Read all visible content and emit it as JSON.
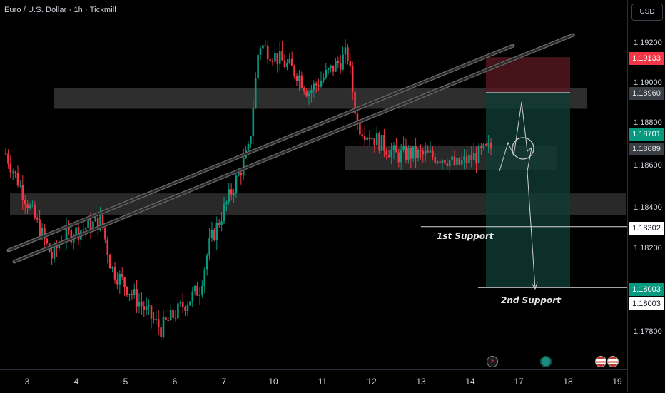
{
  "symbol": {
    "title": "Euro / U.S. Dollar · 1h · Tickmill"
  },
  "price_axis": {
    "currency": "USD",
    "ticks": [
      "1.19200",
      "1.19000",
      "1.18800",
      "1.18600",
      "1.18400",
      "1.18200",
      "1.17800"
    ],
    "tags": {
      "stop_price": "1.19133",
      "upper_zone": "1.18960",
      "last_price": "1.18701",
      "current": "1.18689",
      "first_support": "1.18302",
      "target": "1.18003",
      "target_secondary": "1.18003"
    }
  },
  "time_axis": {
    "labels": [
      "3",
      "4",
      "5",
      "6",
      "7",
      "10",
      "11",
      "12",
      "13",
      "14",
      "17",
      "18",
      "19"
    ]
  },
  "annotations": {
    "first_support": "1st Support",
    "second_support": "2nd Support"
  },
  "colors": {
    "bull": "#089981",
    "bear": "#f23645",
    "stop_zone": "#5c1a22",
    "target_zone": "#0f3b34",
    "zone": "#3a3a3a",
    "channel": "#6a6a6a",
    "tag_red": "#f23645",
    "tag_green": "#089981"
  },
  "chart_data": {
    "type": "candlestick",
    "symbol": "EURUSD",
    "interval": "1h",
    "y_range": [
      1.1767,
      1.1931
    ],
    "close_path": [
      {
        "x": "3",
        "y": 1.1866
      },
      {
        "x": "3",
        "y": 1.1815
      },
      {
        "x": "4",
        "y": 1.1825
      },
      {
        "x": "4",
        "y": 1.1833
      },
      {
        "x": "5",
        "y": 1.181
      },
      {
        "x": "6",
        "y": 1.178
      },
      {
        "x": "6",
        "y": 1.18
      },
      {
        "x": "7",
        "y": 1.1822
      },
      {
        "x": "7",
        "y": 1.1868
      },
      {
        "x": "10",
        "y": 1.192
      },
      {
        "x": "10",
        "y": 1.1905
      },
      {
        "x": "11",
        "y": 1.1896
      },
      {
        "x": "11",
        "y": 1.1915
      },
      {
        "x": "12",
        "y": 1.188
      },
      {
        "x": "12",
        "y": 1.1865
      },
      {
        "x": "13",
        "y": 1.1866
      },
      {
        "x": "13",
        "y": 1.1864
      },
      {
        "x": "14",
        "y": 1.186
      },
      {
        "x": "14",
        "y": 1.1869
      }
    ],
    "horizontal_levels": [
      1.18302,
      1.18003
    ],
    "resistance_zone": [
      1.1888,
      1.1898
    ],
    "support_zone": [
      1.1836,
      1.18465
    ],
    "consolidation_zone": [
      1.1858,
      1.187
    ],
    "trade_setup": {
      "stop": 1.19133,
      "entry": 1.1896,
      "target": 1.18003
    }
  }
}
